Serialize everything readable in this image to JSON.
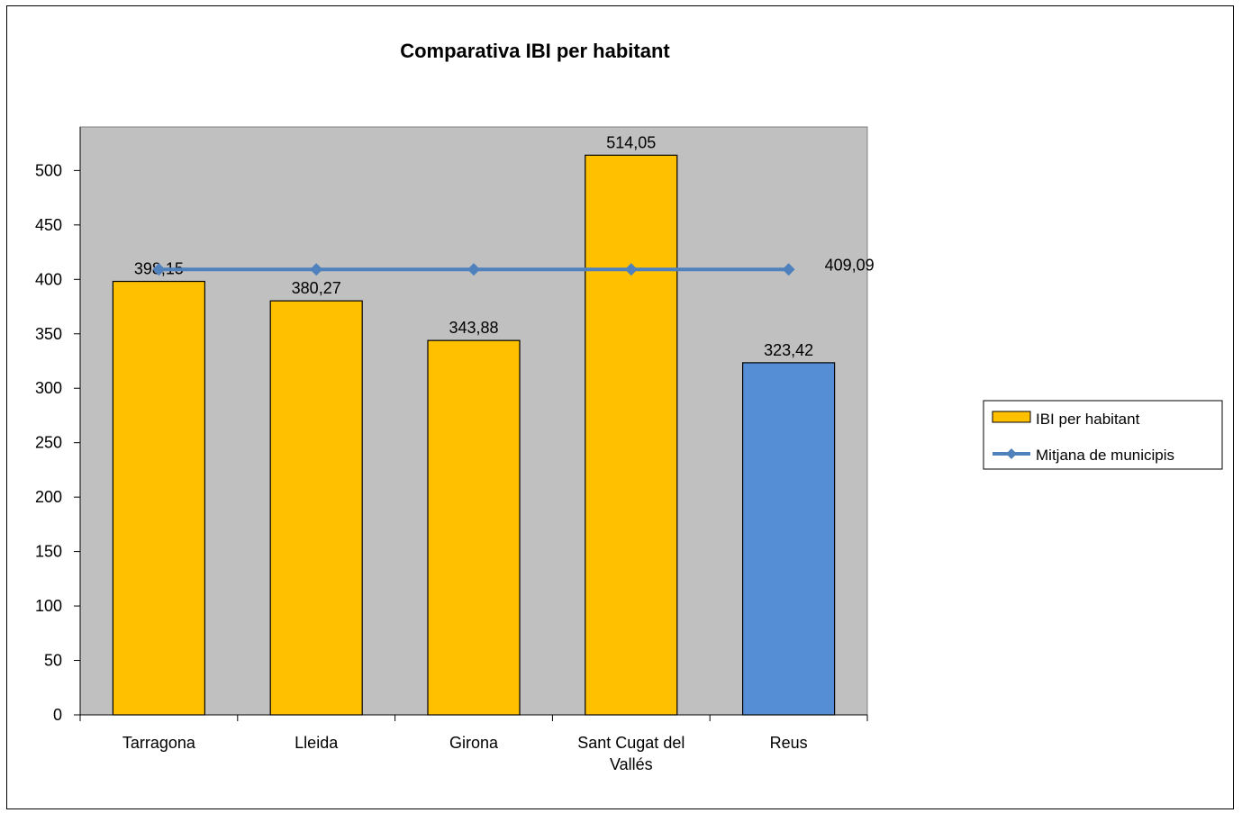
{
  "chart_data": {
    "type": "bar",
    "title": "Comparativa IBI per habitant",
    "categories": [
      "Tarragona",
      "Lleida",
      "Girona",
      "Sant Cugat del Vallés",
      "Reus"
    ],
    "category_lines": [
      [
        "Tarragona"
      ],
      [
        "Lleida"
      ],
      [
        "Girona"
      ],
      [
        "Sant Cugat del",
        "Vallés"
      ],
      [
        "Reus"
      ]
    ],
    "series": [
      {
        "name": "IBI per habitant",
        "kind": "bar",
        "values": [
          398.15,
          380.27,
          343.88,
          514.05,
          323.42
        ],
        "labels": [
          "398,15",
          "380,27",
          "343,88",
          "514,05",
          "323,42"
        ],
        "colors": [
          "#FFC000",
          "#FFC000",
          "#FFC000",
          "#FFC000",
          "#558ED5"
        ]
      },
      {
        "name": "Mitjana de municipis",
        "kind": "line",
        "values": [
          409.09,
          409.09,
          409.09,
          409.09,
          409.09
        ],
        "end_label": "409,09",
        "color": "#4F81BD"
      }
    ],
    "y_ticks": [
      0,
      50,
      100,
      150,
      200,
      250,
      300,
      350,
      400,
      450,
      500
    ],
    "ylim": [
      0,
      540
    ],
    "xlabel": "",
    "ylabel": "",
    "plot_background": "#C0C0C0",
    "grid": false,
    "legend_position": "right"
  }
}
